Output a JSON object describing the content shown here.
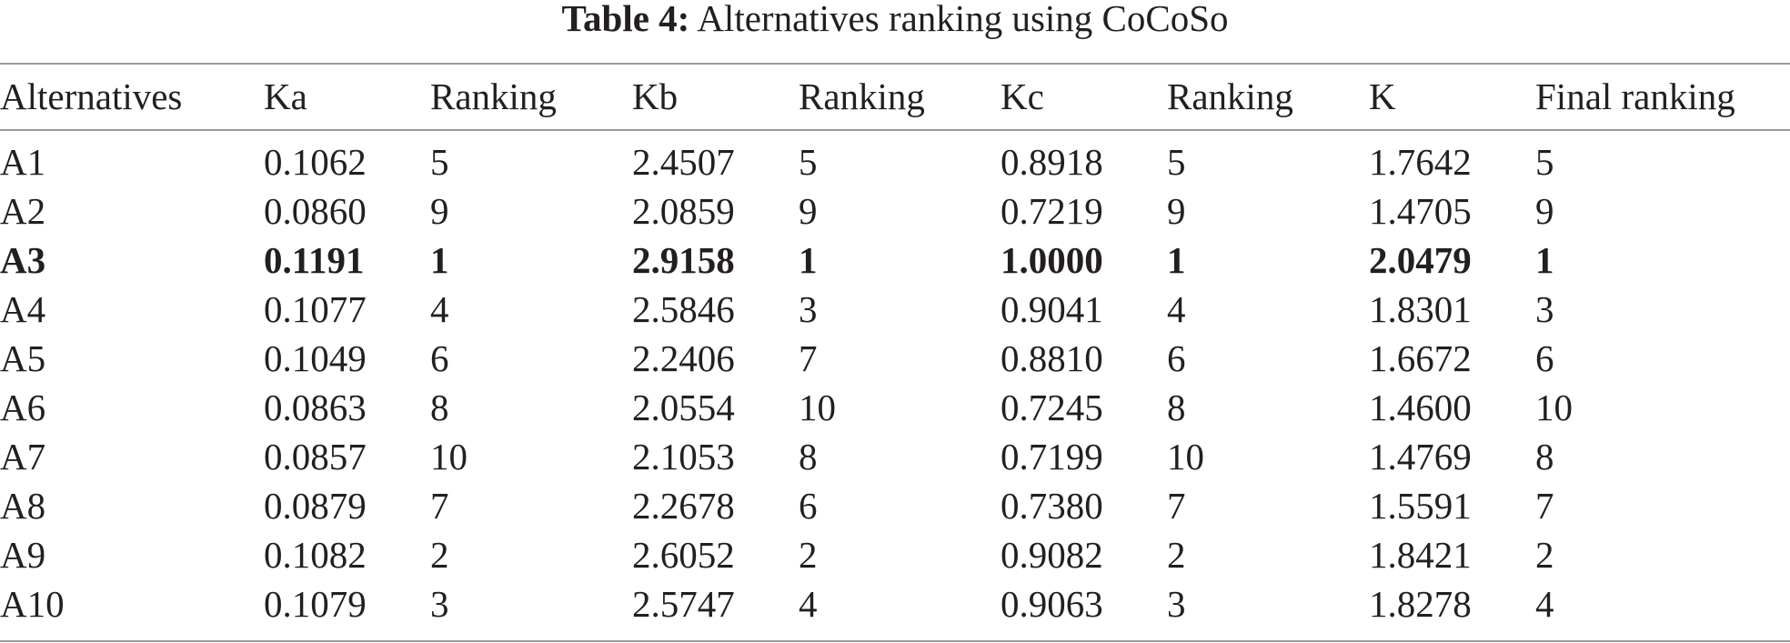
{
  "caption": {
    "label": "Table 4:",
    "title": "Alternatives ranking using CoCoSo"
  },
  "table": {
    "headers": [
      "Alternatives",
      "Ka",
      "Ranking",
      "Kb",
      "Ranking",
      "Kc",
      "Ranking",
      "K",
      "Final ranking"
    ],
    "rows": [
      [
        "A1",
        "0.1062",
        "5",
        "2.4507",
        "5",
        "0.8918",
        "5",
        "1.7642",
        "5"
      ],
      [
        "A2",
        "0.0860",
        "9",
        "2.0859",
        "9",
        "0.7219",
        "9",
        "1.4705",
        "9"
      ],
      [
        "A3",
        "0.1191",
        "1",
        "2.9158",
        "1",
        "1.0000",
        "1",
        "2.0479",
        "1"
      ],
      [
        "A4",
        "0.1077",
        "4",
        "2.5846",
        "3",
        "0.9041",
        "4",
        "1.8301",
        "3"
      ],
      [
        "A5",
        "0.1049",
        "6",
        "2.2406",
        "7",
        "0.8810",
        "6",
        "1.6672",
        "6"
      ],
      [
        "A6",
        "0.0863",
        "8",
        "2.0554",
        "10",
        "0.7245",
        "8",
        "1.4600",
        "10"
      ],
      [
        "A7",
        "0.0857",
        "10",
        "2.1053",
        "8",
        "0.7199",
        "10",
        "1.4769",
        "8"
      ],
      [
        "A8",
        "0.0879",
        "7",
        "2.2678",
        "6",
        "0.7380",
        "7",
        "1.5591",
        "7"
      ],
      [
        "A9",
        "0.1082",
        "2",
        "2.6052",
        "2",
        "0.9082",
        "2",
        "1.8421",
        "2"
      ],
      [
        "A10",
        "0.1079",
        "3",
        "2.5747",
        "4",
        "0.9063",
        "3",
        "1.8278",
        "4"
      ]
    ],
    "bold_row_index": 2
  }
}
